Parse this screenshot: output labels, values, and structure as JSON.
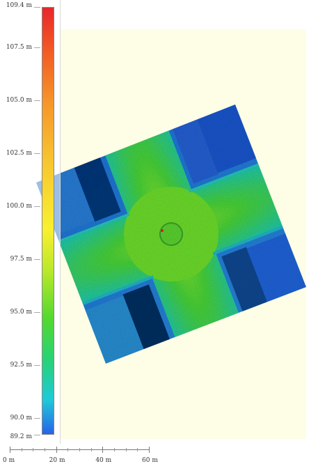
{
  "map": {
    "background_color": "#ffffff",
    "extent_color": "#fefde6"
  },
  "legend": {
    "colors": [
      "#e8272a",
      "#f5952a",
      "#f9f02f",
      "#52d830",
      "#20c9d9",
      "#2762e8"
    ],
    "ticks": [
      {
        "label": "109.4 m",
        "value": 109.4
      },
      {
        "label": "107.5 m",
        "value": 107.5
      },
      {
        "label": "105.0 m",
        "value": 105.0
      },
      {
        "label": "102.5 m",
        "value": 102.5
      },
      {
        "label": "100.0 m",
        "value": 100.0
      },
      {
        "label": "97.5 m",
        "value": 97.5
      },
      {
        "label": "95.0 m",
        "value": 95.0
      },
      {
        "label": "92.5 m",
        "value": 92.5
      },
      {
        "label": "90.0 m",
        "value": 90.0
      },
      {
        "label": "89.2 m",
        "value": 89.2
      }
    ]
  },
  "scale": {
    "labels": [
      "0 m",
      "20 m",
      "40 m",
      "60 m"
    ]
  }
}
